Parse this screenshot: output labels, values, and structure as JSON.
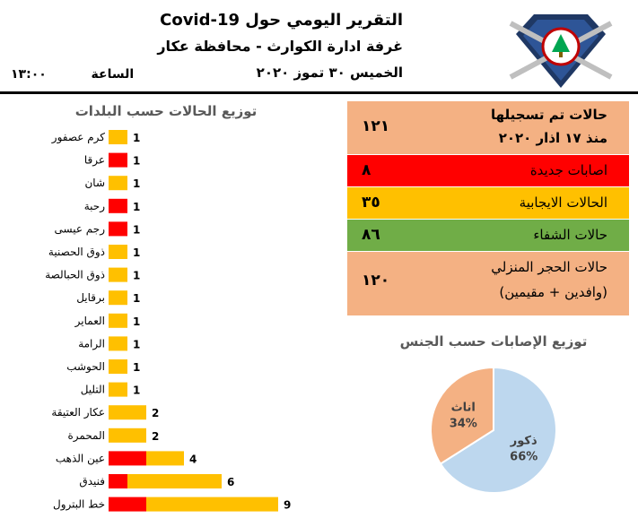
{
  "header": {
    "title": "التقرير اليومي حول Covid-19",
    "subtitle": "غرفة ادارة الكوارث - محافظة عكار",
    "date": "الخميس ٣٠ تموز ٢٠٢٠",
    "time_label": "الساعة",
    "time_value": "١٣:٠٠"
  },
  "stats": {
    "total_label_1": "حالات تم تسجيلها",
    "total_label_2": "منذ ١٧ اذار ٢٠٢٠",
    "total_value": "١٢١",
    "new_label": "اصابات جديدة",
    "new_value": "٨",
    "active_label": "الحالات الايجابية",
    "active_value": "٣٥",
    "recovered_label": "حالات الشفاء",
    "recovered_value": "٨٦",
    "quarantine_label_1": "حالات الحجر المنزلي",
    "quarantine_label_2": "(وافدين + مقيمين)",
    "quarantine_value": "١٢٠"
  },
  "colors": {
    "salmon": "#f4b183",
    "red": "#ff0000",
    "yellow": "#ffc000",
    "green": "#70ad47",
    "pie_blue": "#bdd7ee",
    "pie_orange": "#f4b183"
  },
  "chart_data": [
    {
      "type": "bar",
      "title": "توزيع الحالات حسب البلدات",
      "categories": [
        "كرم عصفور",
        "عرقا",
        "شان",
        "رحبة",
        "رجم عيسى",
        "ذوق الحصنية",
        "ذوق الحبالصة",
        "برقايل",
        "العماير",
        "الرامة",
        "الحوشب",
        "التليل",
        "عكار العتيقة",
        "المحمرة",
        "عين الذهب",
        "فنيدق",
        "خط البترول"
      ],
      "values": [
        1,
        1,
        1,
        1,
        1,
        1,
        1,
        1,
        1,
        1,
        1,
        1,
        2,
        2,
        4,
        6,
        9
      ],
      "red_values": [
        0,
        1,
        0,
        1,
        1,
        0,
        0,
        0,
        0,
        0,
        0,
        0,
        0,
        0,
        2,
        1,
        2
      ]
    },
    {
      "type": "pie",
      "title": "توزيع الإصابات حسب الجنس",
      "slices": [
        {
          "label": "ذكور",
          "pct_label": "66%",
          "value": 66
        },
        {
          "label": "اناث",
          "pct_label": "34%",
          "value": 34
        }
      ]
    }
  ]
}
